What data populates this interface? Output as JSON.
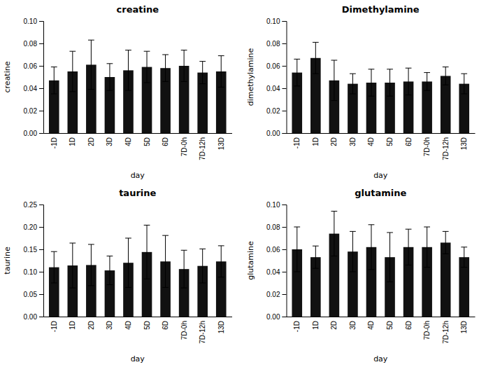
{
  "chart_data": [
    {
      "type": "bar",
      "title": "creatine",
      "xlabel": "day",
      "ylabel": "creatine",
      "categories": [
        "-1D",
        "1D",
        "2D",
        "3D",
        "4D",
        "5D",
        "6D",
        "7D-0h",
        "7D-12h",
        "13D"
      ],
      "values": [
        0.047,
        0.055,
        0.061,
        0.05,
        0.056,
        0.059,
        0.058,
        0.06,
        0.054,
        0.055
      ],
      "errors": [
        0.012,
        0.018,
        0.022,
        0.012,
        0.018,
        0.014,
        0.012,
        0.014,
        0.01,
        0.014
      ],
      "color": "#111111",
      "grid": false,
      "ylim": [
        0,
        0.1
      ],
      "yticks": [
        {
          "value": 0,
          "label": "0.00"
        },
        0.02,
        0.04,
        0.06,
        0.08,
        {
          "value": 0.1,
          "label": "0.10"
        }
      ]
    },
    {
      "type": "bar",
      "title": "Dimethylamine",
      "xlabel": "day",
      "ylabel": "dimethylamine",
      "categories": [
        "-1D",
        "1D",
        "2D",
        "3D",
        "4D",
        "5D",
        "6D",
        "7D-0h",
        "7D-12h",
        "13D"
      ],
      "values": [
        0.054,
        0.067,
        0.047,
        0.044,
        0.045,
        0.045,
        0.046,
        0.046,
        0.051,
        0.044
      ],
      "errors": [
        0.012,
        0.014,
        0.018,
        0.009,
        0.012,
        0.012,
        0.012,
        0.008,
        0.008,
        0.009
      ],
      "color": "#111111",
      "grid": false,
      "ylim": [
        0,
        0.1
      ],
      "yticks": [
        {
          "value": 0,
          "label": "0.00"
        },
        0.02,
        0.04,
        0.06,
        0.08,
        {
          "value": 0.1,
          "label": "0.10"
        }
      ]
    },
    {
      "type": "bar",
      "title": "taurine",
      "xlabel": "day",
      "ylabel": "taurine",
      "categories": [
        "-1D",
        "1D",
        "2D",
        "3D",
        "4D",
        "5D",
        "6D",
        "7D-0h",
        "7D-12h",
        "13D"
      ],
      "values": [
        0.11,
        0.114,
        0.115,
        0.103,
        0.12,
        0.144,
        0.123,
        0.106,
        0.113,
        0.123
      ],
      "errors": [
        0.035,
        0.05,
        0.046,
        0.032,
        0.055,
        0.06,
        0.058,
        0.042,
        0.038,
        0.035
      ],
      "color": "#111111",
      "grid": false,
      "ylim": [
        0,
        0.25
      ],
      "yticks": [
        {
          "value": 0,
          "label": "0.00"
        },
        0.05,
        {
          "value": 0.1,
          "label": "0.10"
        },
        0.15,
        {
          "value": 0.2,
          "label": "0.20"
        },
        0.25
      ]
    },
    {
      "type": "bar",
      "title": "glutamine",
      "xlabel": "day",
      "ylabel": "glutamine",
      "categories": [
        "-1D",
        "1D",
        "2D",
        "3D",
        "4D",
        "5D",
        "6D",
        "7D-0h",
        "7D-12h",
        "13D"
      ],
      "values": [
        0.06,
        0.053,
        0.074,
        0.058,
        0.062,
        0.053,
        0.062,
        0.062,
        0.066,
        0.053
      ],
      "errors": [
        0.02,
        0.01,
        0.02,
        0.018,
        0.02,
        0.022,
        0.016,
        0.018,
        0.01,
        0.009
      ],
      "color": "#111111",
      "grid": false,
      "ylim": [
        0,
        0.1
      ],
      "yticks": [
        {
          "value": 0,
          "label": "0.00"
        },
        0.02,
        0.04,
        0.06,
        0.08,
        {
          "value": 0.1,
          "label": "0.10"
        }
      ]
    }
  ]
}
